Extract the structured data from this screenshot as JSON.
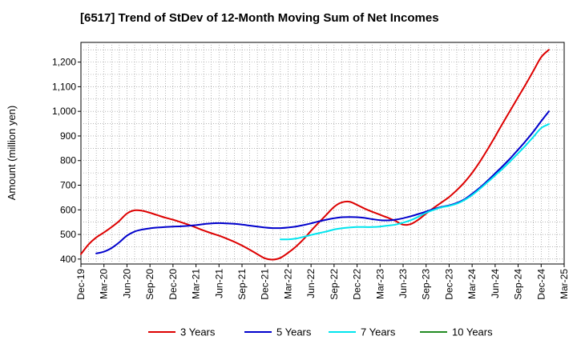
{
  "chart_data": {
    "type": "line",
    "title": "[6517]  Trend of StDev of 12-Month Moving Sum of Net Incomes",
    "ylabel": "Amount (million yen)",
    "xlabel": "",
    "ylim": [
      380,
      1280
    ],
    "yticks": [
      400,
      500,
      600,
      700,
      800,
      900,
      1000,
      1100,
      1200
    ],
    "ytick_labels": [
      "400",
      "500",
      "600",
      "700",
      "800",
      "900",
      "1,000",
      "1,100",
      "1,200"
    ],
    "x_range": [
      "2019-12",
      "2025-03"
    ],
    "xticks": [
      "2019-12",
      "2020-03",
      "2020-06",
      "2020-09",
      "2020-12",
      "2021-03",
      "2021-06",
      "2021-09",
      "2021-12",
      "2022-03",
      "2022-06",
      "2022-09",
      "2022-12",
      "2023-03",
      "2023-06",
      "2023-09",
      "2023-12",
      "2024-03",
      "2024-06",
      "2024-09",
      "2024-12",
      "2025-03"
    ],
    "xtick_labels": [
      "Dec-19",
      "Mar-20",
      "Jun-20",
      "Sep-20",
      "Dec-20",
      "Mar-21",
      "Jun-21",
      "Sep-21",
      "Dec-21",
      "Mar-22",
      "Jun-22",
      "Sep-22",
      "Dec-22",
      "Mar-23",
      "Jun-23",
      "Sep-23",
      "Dec-23",
      "Mar-24",
      "Jun-24",
      "Sep-24",
      "Dec-24",
      "Mar-25"
    ],
    "grid": true,
    "legend_position": "bottom",
    "series": [
      {
        "name": "3 Years",
        "color": "#dd0000",
        "points": [
          [
            "2019-12",
            420
          ],
          [
            "2020-01",
            460
          ],
          [
            "2020-02",
            488
          ],
          [
            "2020-03",
            508
          ],
          [
            "2020-04",
            530
          ],
          [
            "2020-05",
            555
          ],
          [
            "2020-06",
            585
          ],
          [
            "2020-07",
            598
          ],
          [
            "2020-08",
            596
          ],
          [
            "2020-09",
            588
          ],
          [
            "2020-10",
            578
          ],
          [
            "2020-11",
            568
          ],
          [
            "2020-12",
            560
          ],
          [
            "2021-01",
            550
          ],
          [
            "2021-02",
            540
          ],
          [
            "2021-03",
            528
          ],
          [
            "2021-04",
            516
          ],
          [
            "2021-05",
            505
          ],
          [
            "2021-06",
            495
          ],
          [
            "2021-07",
            483
          ],
          [
            "2021-08",
            470
          ],
          [
            "2021-09",
            455
          ],
          [
            "2021-10",
            438
          ],
          [
            "2021-11",
            420
          ],
          [
            "2021-12",
            403
          ],
          [
            "2022-01",
            398
          ],
          [
            "2022-02",
            405
          ],
          [
            "2022-03",
            425
          ],
          [
            "2022-04",
            450
          ],
          [
            "2022-05",
            480
          ],
          [
            "2022-06",
            515
          ],
          [
            "2022-07",
            548
          ],
          [
            "2022-08",
            580
          ],
          [
            "2022-09",
            612
          ],
          [
            "2022-10",
            630
          ],
          [
            "2022-11",
            633
          ],
          [
            "2022-12",
            620
          ],
          [
            "2023-01",
            605
          ],
          [
            "2023-02",
            592
          ],
          [
            "2023-03",
            580
          ],
          [
            "2023-04",
            568
          ],
          [
            "2023-05",
            555
          ],
          [
            "2023-06",
            540
          ],
          [
            "2023-07",
            542
          ],
          [
            "2023-08",
            560
          ],
          [
            "2023-09",
            585
          ],
          [
            "2023-10",
            608
          ],
          [
            "2023-11",
            630
          ],
          [
            "2023-12",
            652
          ],
          [
            "2024-01",
            680
          ],
          [
            "2024-02",
            712
          ],
          [
            "2024-03",
            750
          ],
          [
            "2024-04",
            795
          ],
          [
            "2024-05",
            845
          ],
          [
            "2024-06",
            898
          ],
          [
            "2024-07",
            952
          ],
          [
            "2024-08",
            1005
          ],
          [
            "2024-09",
            1058
          ],
          [
            "2024-10",
            1110
          ],
          [
            "2024-11",
            1165
          ],
          [
            "2024-12",
            1220
          ],
          [
            "2025-01",
            1250
          ]
        ]
      },
      {
        "name": "5 Years",
        "color": "#0000cc",
        "points": [
          [
            "2020-02",
            423
          ],
          [
            "2020-03",
            430
          ],
          [
            "2020-04",
            445
          ],
          [
            "2020-05",
            468
          ],
          [
            "2020-06",
            495
          ],
          [
            "2020-07",
            512
          ],
          [
            "2020-08",
            520
          ],
          [
            "2020-09",
            525
          ],
          [
            "2020-10",
            528
          ],
          [
            "2020-11",
            530
          ],
          [
            "2020-12",
            532
          ],
          [
            "2021-01",
            533
          ],
          [
            "2021-02",
            535
          ],
          [
            "2021-03",
            538
          ],
          [
            "2021-04",
            542
          ],
          [
            "2021-05",
            545
          ],
          [
            "2021-06",
            546
          ],
          [
            "2021-07",
            545
          ],
          [
            "2021-08",
            543
          ],
          [
            "2021-09",
            540
          ],
          [
            "2021-10",
            536
          ],
          [
            "2021-11",
            532
          ],
          [
            "2021-12",
            528
          ],
          [
            "2022-01",
            526
          ],
          [
            "2022-02",
            526
          ],
          [
            "2022-03",
            528
          ],
          [
            "2022-04",
            532
          ],
          [
            "2022-05",
            538
          ],
          [
            "2022-06",
            545
          ],
          [
            "2022-07",
            553
          ],
          [
            "2022-08",
            560
          ],
          [
            "2022-09",
            566
          ],
          [
            "2022-10",
            570
          ],
          [
            "2022-11",
            571
          ],
          [
            "2022-12",
            570
          ],
          [
            "2023-01",
            567
          ],
          [
            "2023-02",
            562
          ],
          [
            "2023-03",
            558
          ],
          [
            "2023-04",
            557
          ],
          [
            "2023-05",
            560
          ],
          [
            "2023-06",
            566
          ],
          [
            "2023-07",
            574
          ],
          [
            "2023-08",
            583
          ],
          [
            "2023-09",
            593
          ],
          [
            "2023-10",
            603
          ],
          [
            "2023-11",
            612
          ],
          [
            "2023-12",
            618
          ],
          [
            "2024-01",
            628
          ],
          [
            "2024-02",
            643
          ],
          [
            "2024-03",
            665
          ],
          [
            "2024-04",
            690
          ],
          [
            "2024-05",
            718
          ],
          [
            "2024-06",
            748
          ],
          [
            "2024-07",
            778
          ],
          [
            "2024-08",
            810
          ],
          [
            "2024-09",
            845
          ],
          [
            "2024-10",
            880
          ],
          [
            "2024-11",
            918
          ],
          [
            "2024-12",
            960
          ],
          [
            "2025-01",
            1000
          ]
        ]
      },
      {
        "name": "7 Years",
        "color": "#00e5ee",
        "points": [
          [
            "2022-02",
            480
          ],
          [
            "2022-03",
            480
          ],
          [
            "2022-04",
            483
          ],
          [
            "2022-05",
            490
          ],
          [
            "2022-06",
            498
          ],
          [
            "2022-07",
            505
          ],
          [
            "2022-08",
            512
          ],
          [
            "2022-09",
            520
          ],
          [
            "2022-10",
            525
          ],
          [
            "2022-11",
            528
          ],
          [
            "2022-12",
            530
          ],
          [
            "2023-01",
            530
          ],
          [
            "2023-02",
            530
          ],
          [
            "2023-03",
            532
          ],
          [
            "2023-04",
            536
          ],
          [
            "2023-05",
            540
          ],
          [
            "2023-06",
            548
          ],
          [
            "2023-07",
            558
          ],
          [
            "2023-08",
            572
          ],
          [
            "2023-09",
            588
          ],
          [
            "2023-10",
            600
          ],
          [
            "2023-11",
            610
          ],
          [
            "2023-12",
            616
          ],
          [
            "2024-01",
            625
          ],
          [
            "2024-02",
            640
          ],
          [
            "2024-03",
            660
          ],
          [
            "2024-04",
            685
          ],
          [
            "2024-05",
            712
          ],
          [
            "2024-06",
            740
          ],
          [
            "2024-07",
            768
          ],
          [
            "2024-08",
            798
          ],
          [
            "2024-09",
            830
          ],
          [
            "2024-10",
            862
          ],
          [
            "2024-11",
            897
          ],
          [
            "2024-12",
            932
          ],
          [
            "2025-01",
            948
          ]
        ]
      },
      {
        "name": "10 Years",
        "color": "#228b22",
        "points": []
      }
    ]
  }
}
